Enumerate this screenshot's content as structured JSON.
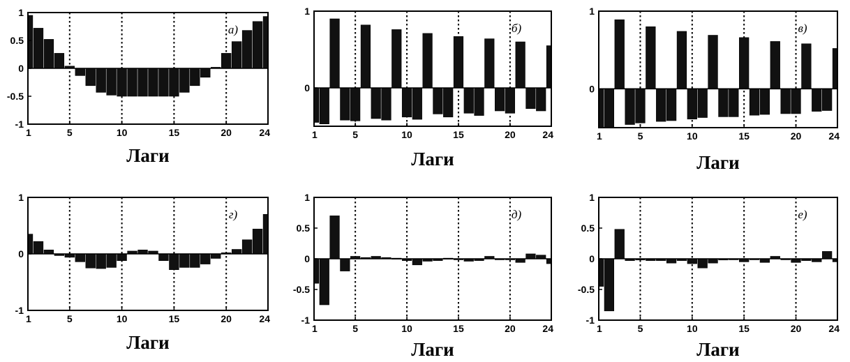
{
  "chart_data": [
    {
      "type": "bar",
      "panel_label": "а)",
      "xlabel": "Лаги",
      "x": [
        1,
        2,
        3,
        4,
        5,
        6,
        7,
        8,
        9,
        10,
        11,
        12,
        13,
        14,
        15,
        16,
        17,
        18,
        19,
        20,
        21,
        22,
        23,
        24
      ],
      "values": [
        0.95,
        0.72,
        0.52,
        0.27,
        0.04,
        -0.13,
        -0.31,
        -0.43,
        -0.48,
        -0.5,
        -0.5,
        -0.5,
        -0.5,
        -0.5,
        -0.5,
        -0.43,
        -0.31,
        -0.16,
        0.02,
        0.27,
        0.48,
        0.68,
        0.84,
        0.93
      ],
      "xlim": [
        1,
        24
      ],
      "ylim": [
        -1,
        1
      ],
      "x_ticks": [
        1,
        5,
        10,
        15,
        20,
        24
      ],
      "y_ticks": [
        1,
        0.5,
        0,
        -0.5,
        -1
      ],
      "y_tick_labels": [
        "1",
        "0.5",
        "0",
        "-0.5",
        "-1"
      ],
      "vlines": [
        5,
        10,
        15,
        20
      ]
    },
    {
      "type": "bar",
      "panel_label": "б)",
      "xlabel": "Лаги",
      "x": [
        1,
        2,
        3,
        4,
        5,
        6,
        7,
        8,
        9,
        10,
        11,
        12,
        13,
        14,
        15,
        16,
        17,
        18,
        19,
        20,
        21,
        22,
        23,
        24
      ],
      "values": [
        -0.45,
        -0.47,
        0.9,
        -0.42,
        -0.43,
        0.82,
        -0.4,
        -0.42,
        0.76,
        -0.38,
        -0.41,
        0.71,
        -0.34,
        -0.38,
        0.67,
        -0.33,
        -0.36,
        0.64,
        -0.3,
        -0.33,
        0.6,
        -0.27,
        -0.3,
        0.55
      ],
      "xlim": [
        1,
        24
      ],
      "ylim": [
        -0.5,
        1
      ],
      "x_ticks": [
        1,
        5,
        10,
        15,
        20,
        24
      ],
      "y_ticks": [
        1,
        0
      ],
      "y_tick_labels": [
        "1",
        "0"
      ],
      "vlines": [
        5,
        10,
        15,
        20
      ]
    },
    {
      "type": "bar",
      "panel_label": "в)",
      "xlabel": "Лаги",
      "x": [
        1,
        2,
        3,
        4,
        5,
        6,
        7,
        8,
        9,
        10,
        11,
        12,
        13,
        14,
        15,
        16,
        17,
        18,
        19,
        20,
        21,
        22,
        23,
        24
      ],
      "values": [
        -0.5,
        -0.49,
        0.89,
        -0.46,
        -0.44,
        0.8,
        -0.42,
        -0.41,
        0.74,
        -0.39,
        -0.37,
        0.69,
        -0.36,
        -0.36,
        0.66,
        -0.34,
        -0.33,
        0.61,
        -0.32,
        -0.32,
        0.58,
        -0.29,
        -0.28,
        0.52
      ],
      "xlim": [
        1,
        24
      ],
      "ylim": [
        -0.5,
        1
      ],
      "x_ticks": [
        1,
        5,
        10,
        15,
        20,
        24
      ],
      "y_ticks": [
        1,
        0
      ],
      "y_tick_labels": [
        "1",
        "0"
      ],
      "vlines": [
        5,
        10,
        15,
        20
      ]
    },
    {
      "type": "bar",
      "panel_label": "г)",
      "xlabel": "Лаги",
      "x": [
        1,
        2,
        3,
        4,
        5,
        6,
        7,
        8,
        9,
        10,
        11,
        12,
        13,
        14,
        15,
        16,
        17,
        18,
        19,
        20,
        21,
        22,
        23,
        24
      ],
      "values": [
        0.35,
        0.22,
        0.07,
        -0.03,
        -0.06,
        -0.14,
        -0.25,
        -0.26,
        -0.24,
        -0.12,
        0.05,
        0.07,
        0.05,
        -0.12,
        -0.28,
        -0.24,
        -0.24,
        -0.18,
        -0.08,
        0.02,
        0.08,
        0.25,
        0.44,
        0.7
      ],
      "xlim": [
        1,
        24
      ],
      "ylim": [
        -1,
        1
      ],
      "x_ticks": [
        1,
        5,
        10,
        15,
        20,
        24
      ],
      "y_ticks": [
        1,
        0,
        -1
      ],
      "y_tick_labels": [
        "1",
        "0",
        "-1"
      ],
      "vlines": [
        5,
        10,
        15,
        20
      ]
    },
    {
      "type": "bar",
      "panel_label": "д)",
      "xlabel": "Лаги",
      "x": [
        1,
        2,
        3,
        4,
        5,
        6,
        7,
        8,
        9,
        10,
        11,
        12,
        13,
        14,
        15,
        16,
        17,
        18,
        19,
        20,
        21,
        22,
        23,
        24
      ],
      "values": [
        -0.4,
        -0.75,
        0.7,
        -0.2,
        0.04,
        0.02,
        0.04,
        0.02,
        0.01,
        -0.03,
        -0.1,
        -0.04,
        -0.03,
        0.01,
        -0.01,
        -0.04,
        -0.03,
        0.04,
        -0.01,
        -0.01,
        -0.06,
        0.08,
        0.06,
        -0.08
      ],
      "xlim": [
        1,
        24
      ],
      "ylim": [
        -1,
        1
      ],
      "x_ticks": [
        1,
        5,
        10,
        15,
        20,
        24
      ],
      "y_ticks": [
        1,
        0.5,
        0,
        -0.5,
        -1
      ],
      "y_tick_labels": [
        "1",
        "0.5",
        "0",
        "-0.5",
        "-1"
      ],
      "vlines": [
        5,
        10,
        15,
        20
      ]
    },
    {
      "type": "bar",
      "panel_label": "е)",
      "xlabel": "Лаги",
      "x": [
        1,
        2,
        3,
        4,
        5,
        6,
        7,
        8,
        9,
        10,
        11,
        12,
        13,
        14,
        15,
        16,
        17,
        18,
        19,
        20,
        21,
        22,
        23,
        24
      ],
      "values": [
        -0.45,
        -0.85,
        0.48,
        -0.03,
        -0.02,
        -0.03,
        -0.03,
        -0.07,
        -0.03,
        -0.08,
        -0.15,
        -0.07,
        -0.02,
        -0.01,
        -0.05,
        -0.01,
        -0.06,
        0.04,
        -0.01,
        -0.06,
        -0.03,
        -0.05,
        0.12,
        -0.05
      ],
      "xlim": [
        1,
        24
      ],
      "ylim": [
        -1,
        1
      ],
      "x_ticks": [
        1,
        5,
        10,
        15,
        20,
        24
      ],
      "y_ticks": [
        1,
        0.5,
        0,
        -0.5,
        -1
      ],
      "y_tick_labels": [
        "1",
        "0.5",
        "0",
        "-0.5",
        "-1"
      ],
      "vlines": [
        5,
        10,
        15,
        20
      ]
    }
  ]
}
